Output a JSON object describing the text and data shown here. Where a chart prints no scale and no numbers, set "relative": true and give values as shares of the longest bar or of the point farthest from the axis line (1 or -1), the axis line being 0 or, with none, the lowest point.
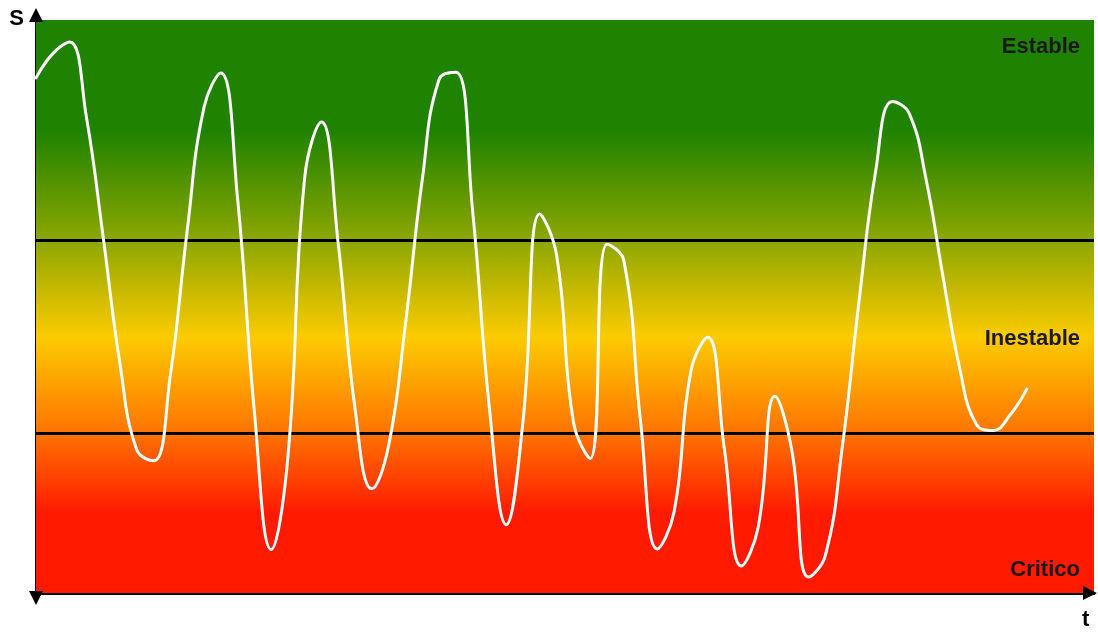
{
  "chart_data": {
    "type": "line",
    "relative": true,
    "xlabel": "t",
    "ylabel": "S",
    "categories": [
      null,
      null,
      null,
      null,
      null,
      null,
      null,
      null,
      null,
      null,
      null,
      null,
      null,
      null,
      null,
      null,
      null,
      null,
      null,
      null,
      null,
      null,
      null,
      null,
      null,
      null,
      null,
      null,
      null,
      null,
      null,
      null,
      null,
      null,
      null,
      null,
      null,
      null,
      null,
      null,
      null,
      null,
      null,
      null,
      null,
      null,
      null,
      null,
      null,
      null,
      null,
      null,
      null,
      null,
      null,
      null,
      null,
      null,
      null,
      null,
      null,
      null,
      null,
      null
    ],
    "series": [
      {
        "color": "#ffffff",
        "values": [
          0.935,
          0.979,
          1,
          0.864,
          0.646,
          0.416,
          0.26,
          0.24,
          0.395,
          0.657,
          0.881,
          0.944,
          0.717,
          0.33,
          0.079,
          0.247,
          0.754,
          0.855,
          0.633,
          0.334,
          0.189,
          0.268,
          0.488,
          0.75,
          0.932,
          0.945,
          0.693,
          0.335,
          0.124,
          0.312,
          0.688,
          0.613,
          0.311,
          0.244,
          0.633,
          0.604,
          0.311,
          0.08,
          0.148,
          0.403,
          0.464,
          0.259,
          0.049,
          0.119,
          0.357,
          0.26,
          0.029,
          0.068,
          0.262,
          0.527,
          0.766,
          0.892,
          0.87,
          0.751,
          0.576,
          0.408,
          0.306,
          0.295,
          0.323,
          0.37,
          null,
          null,
          null,
          null
        ]
      }
    ],
    "ref_lines": [
      {
        "axis": "y",
        "value": 0.638,
        "color": "#000000"
      },
      {
        "axis": "y",
        "value": 0.29,
        "color": "#000000"
      }
    ],
    "bands": [
      {
        "axis": "y",
        "from": 0,
        "to": 0.29,
        "label": "Critico",
        "color": "#ff1a00"
      },
      {
        "axis": "y",
        "from": 0.29,
        "to": 0.638,
        "label": "Inestable",
        "color": "#fccb00"
      },
      {
        "axis": "y",
        "from": 0.638,
        "to": 1,
        "label": "Estable",
        "color": "#1f8200"
      }
    ],
    "grid": false,
    "marker": "none",
    "line_style": "solid"
  }
}
